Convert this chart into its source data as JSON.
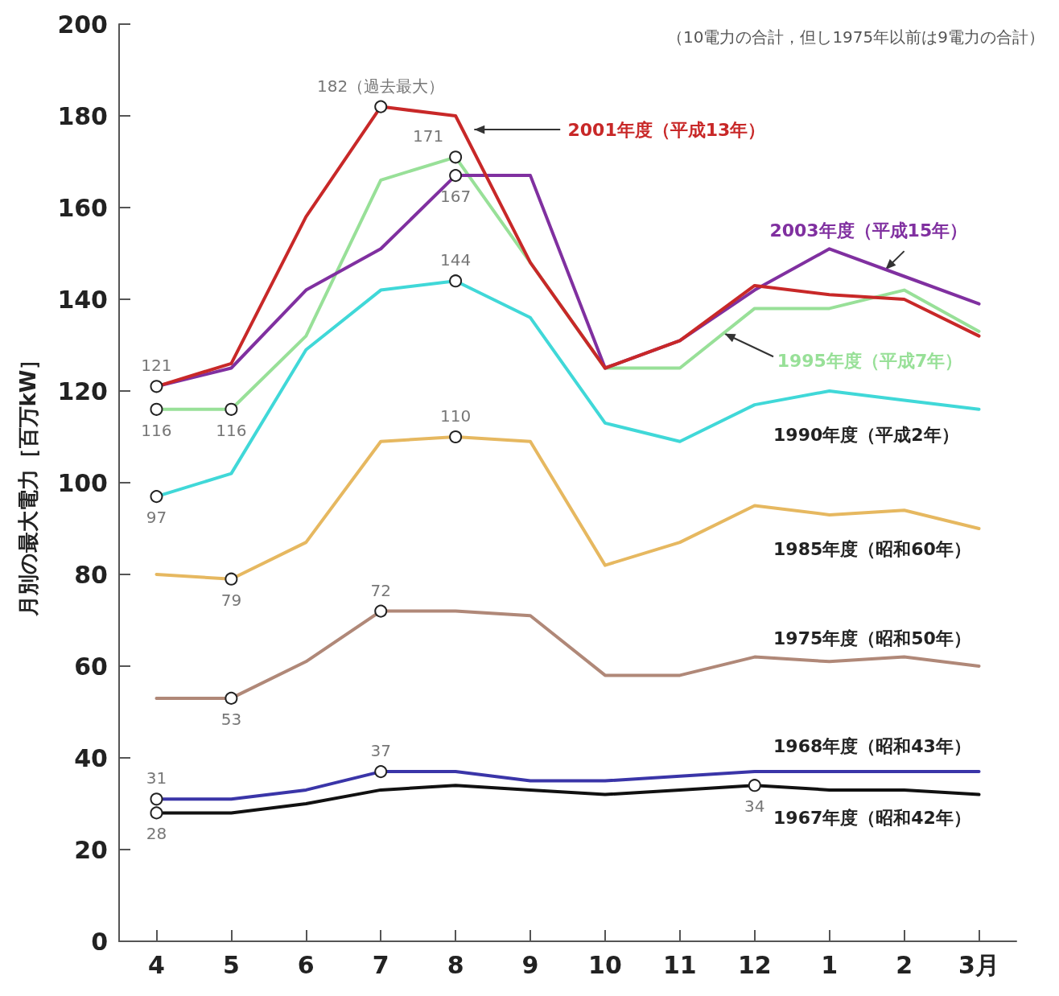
{
  "chart_data": {
    "type": "line",
    "ylabel": "月別の最大電力［百万kW］",
    "categories": [
      "4",
      "5",
      "6",
      "7",
      "8",
      "9",
      "10",
      "11",
      "12",
      "1",
      "2",
      "3月"
    ],
    "ylim": [
      0,
      200
    ],
    "yticks": [
      0,
      20,
      40,
      60,
      80,
      100,
      120,
      140,
      160,
      180,
      200
    ],
    "grid": false,
    "legend": false,
    "annotations": [
      "（10電力の合計，但し1975年以前は9電力の合計）"
    ],
    "series": [
      {
        "name": "1967年度（昭和42年）",
        "color": "#111111",
        "values": [
          28,
          28,
          30,
          33,
          34,
          33,
          32,
          33,
          34,
          33,
          33,
          32
        ],
        "value_labels": [
          "28",
          null,
          null,
          null,
          null,
          null,
          null,
          null,
          "34",
          null,
          null,
          null
        ]
      },
      {
        "name": "1968年度（昭和43年）",
        "color": "#3a35a8",
        "values": [
          31,
          31,
          33,
          37,
          37,
          35,
          35,
          36,
          37,
          37,
          37,
          37
        ],
        "value_labels": [
          "31",
          null,
          null,
          "37",
          null,
          null,
          null,
          null,
          null,
          null,
          null,
          null
        ]
      },
      {
        "name": "1975年度（昭和50年）",
        "color": "#b08878",
        "values": [
          53,
          53,
          61,
          72,
          72,
          71,
          58,
          58,
          62,
          61,
          62,
          60
        ],
        "value_labels": [
          null,
          "53",
          null,
          "72",
          null,
          null,
          null,
          null,
          null,
          null,
          null,
          null
        ]
      },
      {
        "name": "1985年度（昭和60年）",
        "color": "#e6b860",
        "values": [
          80,
          79,
          87,
          109,
          110,
          109,
          82,
          87,
          95,
          93,
          94,
          90
        ],
        "value_labels": [
          null,
          "79",
          null,
          null,
          "110",
          null,
          null,
          null,
          null,
          null,
          null,
          null
        ]
      },
      {
        "name": "1990年度（平成2年）",
        "color": "#40d8d8",
        "values": [
          97,
          102,
          129,
          142,
          144,
          136,
          113,
          109,
          117,
          120,
          118,
          116
        ],
        "value_labels": [
          "97",
          null,
          null,
          null,
          "144",
          null,
          null,
          null,
          null,
          null,
          null,
          null
        ]
      },
      {
        "name": "1995年度（平成7年）",
        "color": "#98e098",
        "values": [
          116,
          116,
          132,
          166,
          171,
          148,
          125,
          125,
          138,
          138,
          142,
          133
        ],
        "value_labels": [
          "116",
          "116",
          null,
          null,
          "171",
          null,
          null,
          null,
          null,
          null,
          null,
          null
        ]
      },
      {
        "name": "2003年度（平成15年）",
        "color": "#8030a0",
        "values": [
          121,
          125,
          142,
          151,
          167,
          167,
          125,
          131,
          142,
          151,
          145,
          139
        ],
        "value_labels": [
          null,
          null,
          null,
          null,
          "167",
          null,
          null,
          null,
          null,
          null,
          null,
          null
        ]
      },
      {
        "name": "2001年度（平成13年）",
        "color": "#c82828",
        "values": [
          121,
          126,
          158,
          182,
          180,
          148,
          125,
          131,
          143,
          141,
          140,
          132
        ],
        "value_labels": [
          "121",
          null,
          null,
          "182（過去最大）",
          null,
          null,
          null,
          null,
          null,
          null,
          null,
          null
        ]
      }
    ]
  }
}
